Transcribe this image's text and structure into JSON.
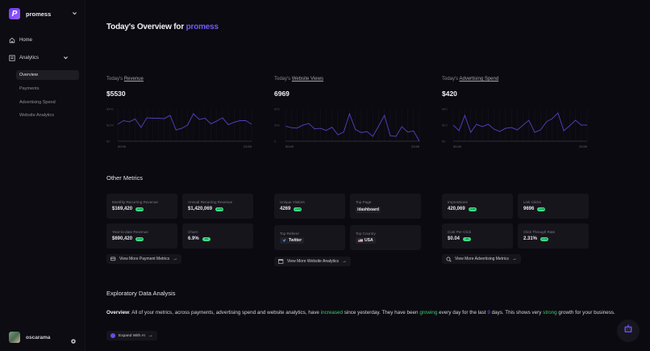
{
  "sidebar": {
    "brand": {
      "logo_letter": "P",
      "name": "promess"
    },
    "nav": [
      {
        "label": "Home",
        "icon": "home-icon"
      },
      {
        "label": "Analytics",
        "icon": "chart-icon",
        "expanded": true
      }
    ],
    "subnav": [
      {
        "label": "Overview",
        "active": true
      },
      {
        "label": "Payments",
        "active": false
      },
      {
        "label": "Advertising Spend",
        "active": false
      },
      {
        "label": "Website Analytics",
        "active": false
      }
    ],
    "user": {
      "name": "oscarama"
    }
  },
  "header": {
    "title_prefix": "Today's Overview for ",
    "title_accent": "promess"
  },
  "charts": [
    {
      "label_prefix": "Today's ",
      "label_link": "Revenue",
      "value": "$5530",
      "y_ticks": [
        "$400",
        "$200",
        "$0"
      ],
      "x_ticks": [
        "00:00",
        "23:59"
      ]
    },
    {
      "label_prefix": "Today's ",
      "label_link": "Website Views",
      "value": "6969",
      "y_ticks": [
        "600",
        "300",
        "0"
      ],
      "x_ticks": [
        "00:00",
        "23:59"
      ]
    },
    {
      "label_prefix": "Today's ",
      "label_link": "Advertising Spend",
      "value": "$420",
      "y_ticks": [
        "$40",
        "$20",
        "$0"
      ],
      "x_ticks": [
        "00:00",
        "23:59"
      ]
    }
  ],
  "chart_data": [
    {
      "type": "line",
      "title": "Today's Revenue",
      "x": [
        "00:00",
        "",
        "",
        "",
        "",
        "",
        "",
        "",
        "",
        "",
        "",
        "",
        "",
        "",
        "",
        "",
        "",
        "",
        "",
        "",
        "",
        "",
        "",
        "23:59"
      ],
      "values": [
        210,
        255,
        240,
        275,
        170,
        290,
        285,
        285,
        280,
        320,
        140,
        160,
        200,
        340,
        270,
        285,
        215,
        250,
        290,
        205,
        235,
        255,
        255,
        210
      ],
      "ylim": [
        0,
        400
      ],
      "color": "#4b3fb5"
    },
    {
      "type": "line",
      "title": "Today's Website Views",
      "x": [
        "00:00",
        "",
        "",
        "",
        "",
        "",
        "",
        "",
        "",
        "",
        "",
        "",
        "",
        "",
        "",
        "",
        "",
        "",
        "",
        "",
        "",
        "",
        "",
        "23:59"
      ],
      "values": [
        280,
        250,
        245,
        300,
        330,
        230,
        240,
        200,
        260,
        120,
        170,
        510,
        220,
        160,
        180,
        90,
        280,
        480,
        100,
        90,
        270,
        170,
        190,
        0
      ],
      "ylim": [
        0,
        600
      ],
      "color": "#4b3fb5"
    },
    {
      "type": "line",
      "title": "Today's Advertising Spend",
      "x": [
        "00:00",
        "",
        "",
        "",
        "",
        "",
        "",
        "",
        "",
        "",
        "",
        "",
        "",
        "",
        "",
        "",
        "",
        "",
        "",
        "",
        "",
        "",
        "",
        "23:59"
      ],
      "values": [
        20,
        13,
        32,
        11,
        21,
        18,
        21,
        15,
        12,
        16,
        17,
        14,
        20,
        26,
        11,
        14,
        24,
        28,
        35,
        13,
        19,
        26,
        20,
        20
      ],
      "ylim": [
        0,
        40
      ],
      "color": "#4b3fb5"
    }
  ],
  "other_metrics": {
    "title": "Other Metrics",
    "payments": [
      {
        "label": "Monthly Recurring Revenue",
        "value": "$169,420",
        "badge": "+4.2%"
      },
      {
        "label": "Annual Recurring Revenue",
        "value": "$1,420,069",
        "badge": "+4.2%"
      },
      {
        "label": "Year-to-date Revenue",
        "value": "$690,420",
        "badge": "+4.2%"
      },
      {
        "label": "Churn",
        "value": "6.9%",
        "badge": "-2%"
      }
    ],
    "payments_button": "View More Payment Metrics",
    "website": [
      {
        "label": "Unique Visitors",
        "value": "4269",
        "badge": "+4.2%"
      },
      {
        "label": "Top Page",
        "value": "/dashboard"
      },
      {
        "label": "Top Referer",
        "value": "Twitter"
      },
      {
        "label": "Top Country",
        "value": "USA"
      }
    ],
    "website_button": "View More Website Analytics",
    "advertising": [
      {
        "label": "Impressions",
        "value": "420,069",
        "badge": "+4.2%"
      },
      {
        "label": "Link Clicks",
        "value": "9696",
        "badge": "+4.2%"
      },
      {
        "label": "Cost Per Click",
        "value": "$0.04",
        "badge": "-2%"
      },
      {
        "label": "Click Through Rate",
        "value": "2.31%",
        "badge": "+4.2%"
      }
    ],
    "advertising_button": "View More Advertising Metrics"
  },
  "eda": {
    "title": "Exploratory Data Analysis",
    "overview_label": "Overview",
    "text_1": ": All of your metrics, across payments, advertising spend and website analytics, have ",
    "hl_1": "increased",
    "text_2": " since yesterday. They have been ",
    "hl_2": "growing",
    "text_3": " every day for the last ",
    "hl_3": "9",
    "text_4": " days. This shows very ",
    "hl_4": "strong",
    "text_5": " growth for your business.",
    "button": "Expand With AI"
  },
  "colors": {
    "accent": "#6f5cf0",
    "positive": "#3ccb6e",
    "badge": "#3ddc84",
    "background": "#0b0a10",
    "card": "#16151c"
  }
}
